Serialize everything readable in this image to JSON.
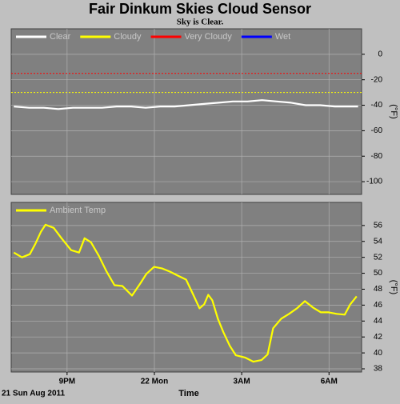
{
  "chart_data": [
    {
      "type": "line",
      "title": "Fair Dinkum Skies Cloud Sensor",
      "subtitle": "Sky is Clear.",
      "ylabel": "(°F)",
      "x": [
        19.17,
        19.7,
        20.2,
        20.7,
        21.2,
        21.7,
        22.2,
        22.7,
        23.2,
        23.7,
        24.2,
        24.7,
        25.2,
        25.7,
        26.2,
        26.7,
        27.2,
        27.7,
        28.2,
        28.7,
        29.2,
        29.7,
        30.2,
        30.7,
        31.0
      ],
      "series": [
        {
          "name": "Clear",
          "color": "#ffffff",
          "values": [
            -41,
            -42,
            -42,
            -43,
            -42,
            -42,
            -42,
            -41,
            -41,
            -42,
            -41,
            -41,
            -40,
            -39,
            -38,
            -37,
            -37,
            -36,
            -37,
            -38,
            -40,
            -40,
            -41,
            -41,
            -41
          ]
        }
      ],
      "legend": [
        {
          "name": "Cloudy",
          "color": "#ffff00"
        },
        {
          "name": "Very Cloudy",
          "color": "#ff0000"
        },
        {
          "name": "Wet",
          "color": "#0000ff"
        }
      ],
      "reference_lines": [
        {
          "value": -30,
          "color": "#ffff00"
        },
        {
          "value": -15,
          "color": "#ff0000"
        }
      ],
      "xlim": [
        19.08,
        31.12
      ],
      "xticks": [
        21,
        24,
        27,
        30
      ],
      "xtick_labels": false,
      "ylim": [
        -110,
        20
      ],
      "yticks": [
        0,
        -20,
        -40,
        -60,
        -80,
        -100
      ],
      "grid": true
    },
    {
      "type": "line",
      "ylabel": "(°F)",
      "xlabel": "Time",
      "date_label": "21 Sun Aug 2011",
      "x": [
        19.17,
        19.45,
        19.72,
        19.91,
        20.1,
        20.26,
        20.54,
        20.81,
        21.14,
        21.41,
        21.6,
        21.82,
        22.09,
        22.36,
        22.63,
        22.9,
        23.23,
        23.53,
        23.72,
        23.99,
        24.27,
        24.54,
        24.81,
        25.09,
        25.36,
        25.55,
        25.71,
        25.85,
        25.99,
        26.18,
        26.37,
        26.59,
        26.8,
        27.13,
        27.4,
        27.68,
        27.89,
        28.08,
        28.36,
        28.63,
        28.9,
        29.17,
        29.45,
        29.72,
        29.99,
        30.26,
        30.54,
        30.73,
        30.95
      ],
      "series": [
        {
          "name": "Ambient Temp",
          "color": "#ffff00",
          "values": [
            52.6,
            52.0,
            52.4,
            53.7,
            55.2,
            56.1,
            55.7,
            54.4,
            52.9,
            52.6,
            54.4,
            53.9,
            52.2,
            50.2,
            48.5,
            48.4,
            47.2,
            48.8,
            49.9,
            50.8,
            50.6,
            50.2,
            49.7,
            49.2,
            47.1,
            45.6,
            46.1,
            47.3,
            46.6,
            44.3,
            42.6,
            40.9,
            39.7,
            39.4,
            38.9,
            39.1,
            39.8,
            43.1,
            44.3,
            44.9,
            45.6,
            46.5,
            45.7,
            45.1,
            45.1,
            44.9,
            44.8,
            46.1,
            47.1
          ]
        }
      ],
      "xlim": [
        19.08,
        31.12
      ],
      "xticks": [
        {
          "value": 21,
          "label": "9PM"
        },
        {
          "value": 24,
          "label": "22 Mon"
        },
        {
          "value": 27,
          "label": "3AM"
        },
        {
          "value": 30,
          "label": "6AM"
        }
      ],
      "ylim": [
        37.6,
        58.9
      ],
      "yticks": [
        56,
        54,
        52,
        50,
        48,
        46,
        44,
        42,
        40,
        38
      ],
      "grid": true
    }
  ]
}
